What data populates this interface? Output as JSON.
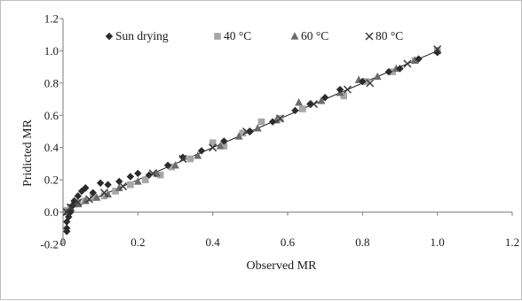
{
  "chart_data": {
    "type": "scatter",
    "title": "",
    "xlabel": "Observed MR",
    "ylabel": "Pridicted MR",
    "xlim": [
      0,
      1.2
    ],
    "ylim": [
      -0.2,
      1.2
    ],
    "x_ticks": [
      "0",
      "0.2",
      "0.4",
      "0.6",
      "0.8",
      "1.0",
      "1.2"
    ],
    "y_ticks": [
      "-0.2",
      "0.0",
      "0.2",
      "0.4",
      "0.6",
      "0.8",
      "1.0",
      "1.2"
    ],
    "grid": false,
    "legend_position": "top",
    "fit_line": {
      "x": [
        0,
        1
      ],
      "y": [
        0,
        1
      ]
    },
    "series": [
      {
        "name": "Sun drying",
        "marker": "diamond",
        "color": "#2b2b2b",
        "points": [
          [
            0.01,
            -0.12
          ],
          [
            0.01,
            -0.1
          ],
          [
            0.01,
            -0.06
          ],
          [
            0.015,
            -0.03
          ],
          [
            0.02,
            0.0
          ],
          [
            0.025,
            0.04
          ],
          [
            0.03,
            0.07
          ],
          [
            0.04,
            0.1
          ],
          [
            0.05,
            0.13
          ],
          [
            0.06,
            0.15
          ],
          [
            0.08,
            0.12
          ],
          [
            0.1,
            0.18
          ],
          [
            0.12,
            0.17
          ],
          [
            0.15,
            0.19
          ],
          [
            0.18,
            0.22
          ],
          [
            0.2,
            0.24
          ],
          [
            0.23,
            0.23
          ],
          [
            0.28,
            0.29
          ],
          [
            0.32,
            0.34
          ],
          [
            0.37,
            0.38
          ],
          [
            0.43,
            0.44
          ],
          [
            0.5,
            0.5
          ],
          [
            0.56,
            0.56
          ],
          [
            0.62,
            0.63
          ],
          [
            0.66,
            0.67
          ],
          [
            0.7,
            0.71
          ],
          [
            0.74,
            0.76
          ],
          [
            0.8,
            0.81
          ],
          [
            0.87,
            0.87
          ],
          [
            0.9,
            0.89
          ],
          [
            0.95,
            0.95
          ],
          [
            1.0,
            0.99
          ]
        ]
      },
      {
        "name": "40 °C",
        "marker": "square",
        "color": "#a6a6a6",
        "points": [
          [
            0.01,
            0.01
          ],
          [
            0.02,
            0.03
          ],
          [
            0.03,
            0.05
          ],
          [
            0.04,
            0.06
          ],
          [
            0.06,
            0.07
          ],
          [
            0.08,
            0.09
          ],
          [
            0.11,
            0.1
          ],
          [
            0.14,
            0.13
          ],
          [
            0.18,
            0.17
          ],
          [
            0.22,
            0.2
          ],
          [
            0.26,
            0.23
          ],
          [
            0.29,
            0.28
          ],
          [
            0.34,
            0.33
          ],
          [
            0.4,
            0.43
          ],
          [
            0.43,
            0.41
          ],
          [
            0.48,
            0.49
          ],
          [
            0.53,
            0.56
          ],
          [
            0.58,
            0.58
          ],
          [
            0.64,
            0.64
          ],
          [
            0.75,
            0.72
          ],
          [
            0.81,
            0.81
          ],
          [
            0.88,
            0.87
          ],
          [
            0.94,
            0.94
          ],
          [
            1.0,
            1.0
          ]
        ]
      },
      {
        "name": "60 °C",
        "marker": "triangle",
        "color": "#6b6b6b",
        "points": [
          [
            0.01,
            0.0
          ],
          [
            0.02,
            0.02
          ],
          [
            0.04,
            0.05
          ],
          [
            0.06,
            0.07
          ],
          [
            0.09,
            0.09
          ],
          [
            0.12,
            0.11
          ],
          [
            0.15,
            0.15
          ],
          [
            0.2,
            0.19
          ],
          [
            0.25,
            0.24
          ],
          [
            0.3,
            0.29
          ],
          [
            0.36,
            0.35
          ],
          [
            0.42,
            0.41
          ],
          [
            0.47,
            0.47
          ],
          [
            0.52,
            0.52
          ],
          [
            0.57,
            0.57
          ],
          [
            0.63,
            0.68
          ],
          [
            0.69,
            0.69
          ],
          [
            0.74,
            0.74
          ],
          [
            0.79,
            0.82
          ],
          [
            0.84,
            0.84
          ],
          [
            0.89,
            0.89
          ],
          [
            0.94,
            0.94
          ],
          [
            1.0,
            1.0
          ]
        ]
      },
      {
        "name": "80 °C",
        "marker": "x",
        "color": "#3a3a3a",
        "points": [
          [
            0.01,
            0.0
          ],
          [
            0.02,
            0.03
          ],
          [
            0.04,
            0.06
          ],
          [
            0.07,
            0.08
          ],
          [
            0.11,
            0.12
          ],
          [
            0.16,
            0.16
          ],
          [
            0.24,
            0.24
          ],
          [
            0.32,
            0.33
          ],
          [
            0.4,
            0.4
          ],
          [
            0.49,
            0.5
          ],
          [
            0.58,
            0.58
          ],
          [
            0.67,
            0.67
          ],
          [
            0.76,
            0.76
          ],
          [
            0.82,
            0.8
          ],
          [
            0.92,
            0.92
          ],
          [
            1.0,
            1.01
          ]
        ]
      }
    ]
  }
}
